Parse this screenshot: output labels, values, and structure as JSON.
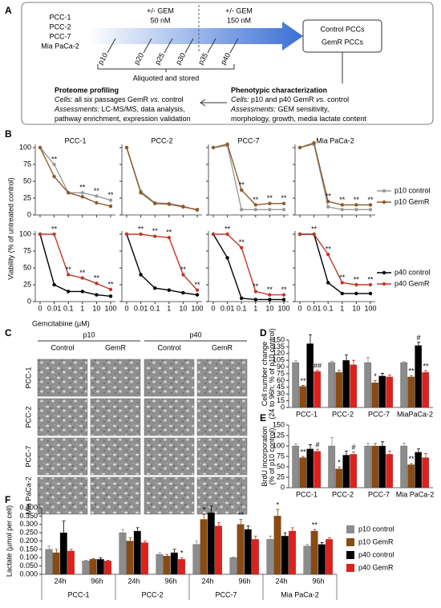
{
  "panel_labels": [
    "A",
    "B",
    "C",
    "D",
    "E",
    "F"
  ],
  "diagram": {
    "cell_lines": [
      "PCC-1",
      "PCC-2",
      "PCC-7",
      "Mia PaCa-2"
    ],
    "treatments": [
      {
        "line1": "+/- GEM",
        "line2": "50 nM"
      },
      {
        "line1": "+/- GEM",
        "line2": "150 nM"
      }
    ],
    "passages": [
      "p10",
      "p20",
      "p25",
      "p30",
      "p35",
      "p40"
    ],
    "storage": "Aliquoted and stored",
    "outputs": [
      {
        "text": "Control PCCs",
        "color": "#000000"
      },
      {
        "text": "GemR PCCs",
        "color": "#e0201b"
      }
    ],
    "proteome": {
      "title": "Proteome profiling",
      "lines": [
        [
          {
            "text": "Cells:",
            "italic": true
          },
          {
            "text": " all six passages GemR ",
            "italic": false
          },
          {
            "text": "vs.",
            "italic": true
          },
          {
            "text": " control",
            "italic": false
          }
        ],
        [
          {
            "text": "Assessments:",
            "italic": true
          },
          {
            "text": " LC-MS/MS, data analysis,",
            "italic": false
          }
        ],
        [
          {
            "text": "pathway enrichment, expression validation",
            "italic": false
          }
        ]
      ]
    },
    "phenotype": {
      "title": "Phenotypic characterization",
      "lines": [
        [
          {
            "text": "Cells:",
            "italic": true
          },
          {
            "text": " p10 and p40 GemR ",
            "italic": false
          },
          {
            "text": "vs.",
            "italic": true
          },
          {
            "text": " control",
            "italic": false
          }
        ],
        [
          {
            "text": "Assessments:",
            "italic": true
          },
          {
            "text": " GEM sensitivity,",
            "italic": false
          }
        ],
        [
          {
            "text": "morphology, growth, media lactate content",
            "italic": false
          }
        ]
      ]
    }
  },
  "images": {
    "passages": [
      "p10",
      "p40"
    ],
    "conditions": [
      "Control",
      "GemR",
      "Control",
      "GemR"
    ],
    "cell_lines": [
      "PCC-1",
      "PCC-2",
      "PCC-7",
      "Mia PaCa-2"
    ]
  },
  "chart_data": [
    {
      "type": "line",
      "ylabel": "Viability (% of untreated control)",
      "xlabel": "Gemcitabine (µM)",
      "categories": [
        "0",
        "0.01",
        "0.1",
        "1",
        "10",
        "100"
      ],
      "ylim": [
        0,
        100
      ],
      "yticks": [
        0,
        25,
        50,
        75,
        100
      ],
      "rows": [
        {
          "series": [
            {
              "name": "p10 control",
              "color": "#9a9a9a"
            },
            {
              "name": "p10 GemR",
              "color": "#8b5a2b"
            }
          ],
          "plots": [
            {
              "title": "PCC-1",
              "values": [
                [
                  100,
                  75,
                  33,
                  33,
                  28,
                  22
                ],
                [
                  100,
                  57,
                  33,
                  27,
                  18,
                  13
                ]
              ],
              "annotations": [
                {
                  "text": "**",
                  "index": 1
                },
                {
                  "text": "**",
                  "index": 3
                },
                {
                  "text": "**",
                  "index": 4
                },
                {
                  "text": "**",
                  "index": 5
                }
              ]
            },
            {
              "title": "PCC-2",
              "values": [
                [
                  100,
                  35,
                  18,
                  17,
                  13,
                  7
                ],
                [
                  100,
                  33,
                  17,
                  16,
                  12,
                  8
                ]
              ],
              "annotations": []
            },
            {
              "title": "PCC-7",
              "values": [
                [
                  100,
                  103,
                  8,
                  8,
                  8,
                  8
                ],
                [
                  100,
                  105,
                  37,
                  15,
                  17,
                  17
                ]
              ],
              "annotations": [
                {
                  "text": "**",
                  "index": 2
                },
                {
                  "text": "**",
                  "index": 3
                },
                {
                  "text": "**",
                  "index": 4
                },
                {
                  "text": "**",
                  "index": 5
                }
              ]
            },
            {
              "title": "Mia PaCa-2",
              "values": [
                [
                  100,
                  105,
                  12,
                  8,
                  8,
                  8
                ],
                [
                  100,
                  107,
                  20,
                  15,
                  15,
                  15
                ]
              ],
              "annotations": [
                {
                  "text": "**",
                  "index": 2
                },
                {
                  "text": "**",
                  "index": 3
                },
                {
                  "text": "**",
                  "index": 4
                },
                {
                  "text": "**",
                  "index": 5
                }
              ]
            }
          ]
        },
        {
          "series": [
            {
              "name": "p40 control",
              "color": "#000000"
            },
            {
              "name": "p40 GemR",
              "color": "#c0392b"
            }
          ],
          "plots": [
            {
              "values": [
                [
                  100,
                  25,
                  15,
                  15,
                  10,
                  8
                ],
                [
                  100,
                  100,
                  40,
                  35,
                  27,
                  18
                ]
              ],
              "annotations": [
                {
                  "text": "**",
                  "index": 1
                },
                {
                  "text": "**",
                  "index": 2
                },
                {
                  "text": "**",
                  "index": 3
                },
                {
                  "text": "**",
                  "index": 4
                },
                {
                  "text": "**",
                  "index": 5
                }
              ]
            },
            {
              "values": [
                [
                  100,
                  40,
                  20,
                  17,
                  13,
                  10
                ],
                [
                  100,
                  100,
                  97,
                  95,
                  40,
                  17
                ]
              ],
              "annotations": [
                {
                  "text": "**",
                  "index": 1
                },
                {
                  "text": "**",
                  "index": 2
                },
                {
                  "text": "**",
                  "index": 3
                },
                {
                  "text": "**",
                  "index": 4
                },
                {
                  "text": "**",
                  "index": 5
                }
              ]
            },
            {
              "values": [
                [
                  100,
                  65,
                  5,
                  3,
                  3,
                  3
                ],
                [
                  100,
                  100,
                  80,
                  15,
                  10,
                  10
                ]
              ],
              "annotations": [
                {
                  "text": "**",
                  "index": 1
                },
                {
                  "text": "**",
                  "index": 2
                },
                {
                  "text": "**",
                  "index": 3
                },
                {
                  "text": "**",
                  "index": 4
                },
                {
                  "text": "**",
                  "index": 5
                }
              ]
            },
            {
              "values": [
                [
                  100,
                  100,
                  28,
                  12,
                  12,
                  12
                ],
                [
                  100,
                  100,
                  70,
                  28,
                  25,
                  25
                ]
              ],
              "annotations": [
                {
                  "text": "**",
                  "index": 1
                },
                {
                  "text": "**",
                  "index": 2
                },
                {
                  "text": "**",
                  "index": 3
                },
                {
                  "text": "**",
                  "index": 4
                },
                {
                  "text": "**",
                  "index": 5
                }
              ]
            }
          ]
        }
      ]
    },
    {
      "type": "bar",
      "ylabel": [
        "Cell number change",
        "(24 to 96h; % of p10 control)"
      ],
      "categories": [
        "PCC-1",
        "PCC-2",
        "PCC-7",
        "MiaPaCa-2"
      ],
      "ylim": [
        0,
        150
      ],
      "yticks": [
        0,
        15,
        30,
        45,
        60,
        75,
        90,
        105,
        120,
        135,
        150
      ],
      "series": [
        {
          "color": "#8c8c8c",
          "values": [
            100,
            100,
            100,
            100
          ],
          "errors": [
            4,
            3,
            12,
            2
          ]
        },
        {
          "color": "#8b4a10",
          "values": [
            47,
            78,
            55,
            68
          ],
          "errors": [
            2,
            5,
            5,
            3
          ]
        },
        {
          "color": "#000000",
          "values": [
            142,
            105,
            70,
            138
          ],
          "errors": [
            20,
            12,
            6,
            7
          ]
        },
        {
          "color": "#e0201b",
          "values": [
            80,
            95,
            68,
            78
          ],
          "errors": [
            3,
            10,
            4,
            4
          ]
        }
      ],
      "annotations": [
        {
          "text": "**",
          "series": 1,
          "index": 0
        },
        {
          "text": "##",
          "series": 3,
          "index": 0
        },
        {
          "text": "*",
          "series": 1,
          "index": 2
        },
        {
          "text": "**",
          "series": 1,
          "index": 3
        },
        {
          "text": "#",
          "series": 2,
          "index": 3
        },
        {
          "text": "**",
          "series": 3,
          "index": 3
        }
      ]
    },
    {
      "type": "bar",
      "ylabel": [
        "BrdU incorporation",
        "(% of p10 control)"
      ],
      "categories": [
        "PCC-1",
        "PCC-2",
        "PCC-7",
        "Mia PaCa-2"
      ],
      "ylim": [
        0,
        150
      ],
      "yticks": [
        0,
        25,
        50,
        75,
        100,
        125,
        150
      ],
      "series": [
        {
          "color": "#8c8c8c",
          "values": [
            100,
            100,
            100,
            100
          ],
          "errors": [
            5,
            20,
            7,
            7
          ]
        },
        {
          "color": "#8b4a10",
          "values": [
            72,
            45,
            100,
            55
          ],
          "errors": [
            3,
            5,
            6,
            3
          ]
        },
        {
          "color": "#000000",
          "values": [
            93,
            78,
            100,
            85
          ],
          "errors": [
            10,
            10,
            10,
            8
          ]
        },
        {
          "color": "#e0201b",
          "values": [
            87,
            80,
            80,
            72
          ],
          "errors": [
            5,
            6,
            8,
            10
          ]
        }
      ],
      "annotations": [
        {
          "text": "**",
          "series": 1,
          "index": 0
        },
        {
          "text": "#",
          "series": 3,
          "index": 0
        },
        {
          "text": "*",
          "series": 1,
          "index": 1
        },
        {
          "text": "#",
          "series": 3,
          "index": 1
        },
        {
          "text": "**",
          "series": 1,
          "index": 3
        }
      ]
    },
    {
      "type": "bar",
      "ylabel": [
        "Lactate (µmol per cell)"
      ],
      "legend": "right",
      "categories": [
        "24h",
        "96h",
        "24h",
        "96h",
        "24h",
        "96h",
        "24h",
        "96h"
      ],
      "groups": [
        "PCC-1",
        "PCC-2",
        "PCC-7",
        "Mia PaCa-2"
      ],
      "ylim": [
        0,
        0.4
      ],
      "yticks": [
        {
          "value": 0,
          "label": "0.000"
        },
        {
          "value": 0.05,
          "label": "0.050"
        },
        {
          "value": 0.1,
          "label": "0.100"
        },
        {
          "value": 0.15,
          "label": "0.150"
        },
        {
          "value": 0.2,
          "label": "0.200"
        },
        {
          "value": 0.25,
          "label": "0.250"
        },
        {
          "value": 0.3,
          "label": "0.300"
        },
        {
          "value": 0.35,
          "label": "0.350"
        },
        {
          "value": 0.4,
          "label": "0.400"
        }
      ],
      "series": [
        {
          "name": "p10 control",
          "color": "#8c8c8c",
          "values": [
            0.15,
            0.08,
            0.25,
            0.12,
            0.18,
            0.1,
            0.21,
            0.17
          ],
          "errors": [
            0.02,
            0.005,
            0.02,
            0.01,
            0.02,
            0.005,
            0.02,
            0.01
          ]
        },
        {
          "name": "p10 GemR",
          "color": "#8b4a10",
          "values": [
            0.13,
            0.09,
            0.2,
            0.11,
            0.33,
            0.3,
            0.35,
            0.26
          ],
          "errors": [
            0.02,
            0.005,
            0.02,
            0.01,
            0.03,
            0.03,
            0.04,
            0.01
          ]
        },
        {
          "name": "p40 control",
          "color": "#000000",
          "values": [
            0.25,
            0.09,
            0.26,
            0.13,
            0.37,
            0.27,
            0.23,
            0.18
          ],
          "errors": [
            0.07,
            0.01,
            0.02,
            0.02,
            0.04,
            0.02,
            0.02,
            0.01
          ]
        },
        {
          "name": "p40 GemR",
          "color": "#e0201b",
          "values": [
            0.14,
            0.08,
            0.19,
            0.09,
            0.29,
            0.21,
            0.26,
            0.21
          ],
          "errors": [
            0.01,
            0.005,
            0.01,
            0.01,
            0.02,
            0.02,
            0.02,
            0.01
          ]
        }
      ],
      "annotations": [
        {
          "text": "*",
          "series": 3,
          "index": 3
        },
        {
          "text": "*",
          "series": 1,
          "index": 4
        },
        {
          "text": "**",
          "series": 1,
          "index": 5
        },
        {
          "text": "*",
          "series": 1,
          "index": 6
        },
        {
          "text": "**",
          "series": 1,
          "index": 7
        }
      ]
    }
  ]
}
